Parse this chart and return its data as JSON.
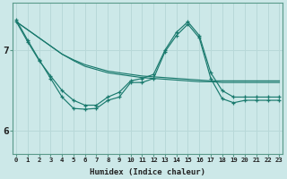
{
  "xlabel": "Humidex (Indice chaleur)",
  "bg_color": "#cce8e8",
  "grid_color": "#b8d8d8",
  "line_color": "#1a7a6e",
  "x_ticks": [
    0,
    1,
    2,
    3,
    4,
    5,
    6,
    7,
    8,
    9,
    10,
    11,
    12,
    13,
    14,
    15,
    16,
    17,
    18,
    19,
    20,
    21,
    22,
    23
  ],
  "y_ticks": [
    6,
    7
  ],
  "ylim": [
    5.72,
    7.58
  ],
  "xlim": [
    -0.3,
    23.3
  ],
  "series_linear1": [
    7.35,
    7.25,
    7.15,
    7.05,
    6.95,
    6.88,
    6.82,
    6.78,
    6.74,
    6.72,
    6.7,
    6.68,
    6.67,
    6.66,
    6.65,
    6.64,
    6.63,
    6.62,
    6.62,
    6.62,
    6.62,
    6.62,
    6.62,
    6.62
  ],
  "series_linear2": [
    7.35,
    7.25,
    7.15,
    7.05,
    6.95,
    6.87,
    6.8,
    6.76,
    6.72,
    6.7,
    6.68,
    6.66,
    6.65,
    6.64,
    6.63,
    6.62,
    6.61,
    6.61,
    6.6,
    6.6,
    6.6,
    6.6,
    6.6,
    6.6
  ],
  "series_wiggly1": [
    7.35,
    7.1,
    6.87,
    6.68,
    6.5,
    6.38,
    6.32,
    6.32,
    6.42,
    6.48,
    6.62,
    6.65,
    6.7,
    7.0,
    7.22,
    7.35,
    7.18,
    6.72,
    6.5,
    6.42,
    6.42,
    6.42,
    6.42,
    6.42
  ],
  "series_wiggly2": [
    7.37,
    7.12,
    6.88,
    6.65,
    6.42,
    6.28,
    6.27,
    6.28,
    6.38,
    6.42,
    6.6,
    6.6,
    6.65,
    6.98,
    7.18,
    7.32,
    7.15,
    6.65,
    6.4,
    6.35,
    6.38,
    6.38,
    6.38,
    6.38
  ]
}
